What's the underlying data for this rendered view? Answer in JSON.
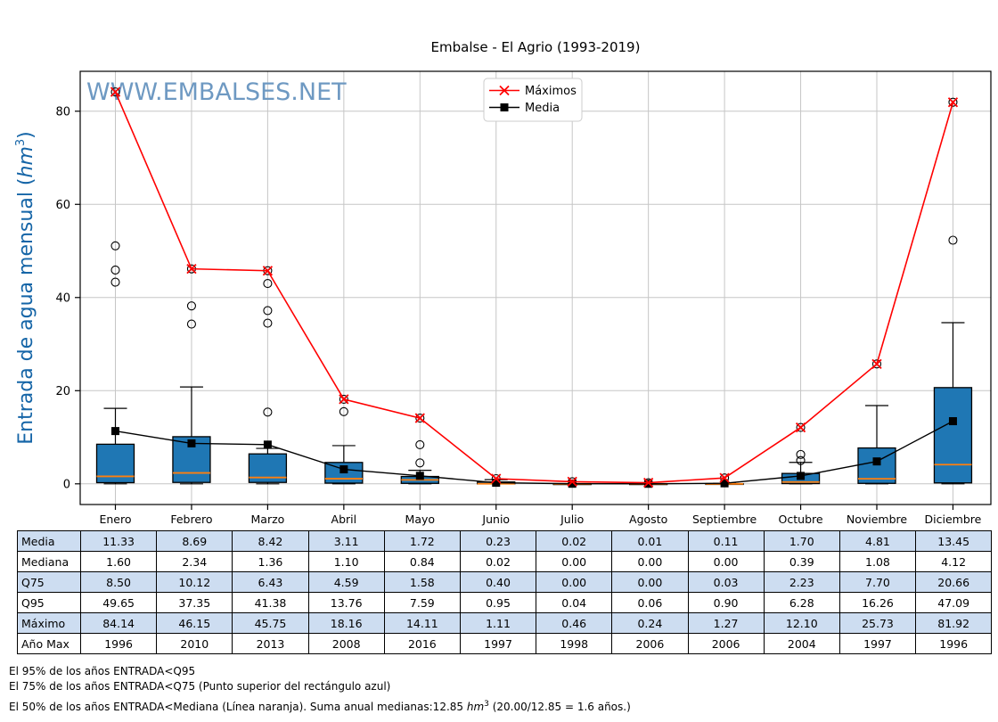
{
  "title": "Embalse - El Agrio (1993-2019)",
  "watermark": "WWW.EMBALSES.NET",
  "ylabel": {
    "pre": "Entrada de agua mensual (",
    "unit": "hm",
    "sup": "3",
    "post": ")"
  },
  "colors": {
    "box_fill": "#1f77b4",
    "box_edge": "#000000",
    "median": "#ff7f0e",
    "max_line": "#ff0000",
    "mean_line": "#000000",
    "grid": "#c6c6c6",
    "watermark": "#6e99c2",
    "ylabel": "#1565a7",
    "table_blue": "#cdddf1"
  },
  "chart_data": {
    "type": "boxplot",
    "title": "Embalse - El Agrio (1993-2019)",
    "ylabel": "Entrada de agua mensual (hm^3)",
    "ylim": [
      -4.4,
      88.6
    ],
    "yticks": [
      0,
      20,
      40,
      60,
      80
    ],
    "grid": true,
    "legend_position": "top-center",
    "categories": [
      "Enero",
      "Febrero",
      "Marzo",
      "Abril",
      "Mayo",
      "Junio",
      "Julio",
      "Agosto",
      "Septiembre",
      "Octubre",
      "Noviembre",
      "Diciembre"
    ],
    "series": [
      {
        "name": "Máximos",
        "marker": "x",
        "color": "#ff0000",
        "values": [
          84.14,
          46.15,
          45.75,
          18.16,
          14.11,
          1.11,
          0.46,
          0.24,
          1.27,
          12.1,
          25.73,
          81.92
        ]
      },
      {
        "name": "Media",
        "marker": "square",
        "color": "#000000",
        "values": [
          11.33,
          8.69,
          8.42,
          3.11,
          1.72,
          0.23,
          0.02,
          0.01,
          0.11,
          1.7,
          4.81,
          13.45
        ]
      }
    ],
    "boxes": [
      {
        "q1": 0.25,
        "median": 1.6,
        "q3": 8.5,
        "whisker_low": 0.0,
        "whisker_high": 16.2,
        "fliers": [
          43.3,
          45.9,
          51.1,
          84.14
        ]
      },
      {
        "q1": 0.3,
        "median": 2.34,
        "q3": 10.12,
        "whisker_low": 0.0,
        "whisker_high": 20.8,
        "fliers": [
          34.3,
          38.2,
          46.15
        ]
      },
      {
        "q1": 0.3,
        "median": 1.36,
        "q3": 6.43,
        "whisker_low": 0.0,
        "whisker_high": 7.6,
        "fliers": [
          15.4,
          34.5,
          37.2,
          43.0,
          45.75
        ]
      },
      {
        "q1": 0.15,
        "median": 1.1,
        "q3": 4.59,
        "whisker_low": 0.0,
        "whisker_high": 8.2,
        "fliers": [
          15.5,
          18.16
        ]
      },
      {
        "q1": 0.1,
        "median": 0.84,
        "q3": 1.58,
        "whisker_low": 0.0,
        "whisker_high": 2.9,
        "fliers": [
          4.5,
          8.4,
          14.11
        ]
      },
      {
        "q1": 0.0,
        "median": 0.02,
        "q3": 0.4,
        "whisker_low": 0.0,
        "whisker_high": 0.9,
        "fliers": [
          1.11
        ]
      },
      {
        "q1": 0.0,
        "median": 0.0,
        "q3": 0.0,
        "whisker_low": 0.0,
        "whisker_high": 0.05,
        "fliers": [
          0.46
        ]
      },
      {
        "q1": 0.0,
        "median": 0.0,
        "q3": 0.0,
        "whisker_low": 0.0,
        "whisker_high": 0.03,
        "fliers": [
          0.24
        ]
      },
      {
        "q1": 0.0,
        "median": 0.0,
        "q3": 0.03,
        "whisker_low": 0.0,
        "whisker_high": 0.1,
        "fliers": [
          1.27
        ]
      },
      {
        "q1": 0.05,
        "median": 0.39,
        "q3": 2.23,
        "whisker_low": 0.0,
        "whisker_high": 4.6,
        "fliers": [
          5.0,
          6.3,
          12.1
        ]
      },
      {
        "q1": 0.1,
        "median": 1.08,
        "q3": 7.7,
        "whisker_low": 0.0,
        "whisker_high": 16.8,
        "fliers": [
          25.73
        ]
      },
      {
        "q1": 0.2,
        "median": 4.12,
        "q3": 20.66,
        "whisker_low": 0.0,
        "whisker_high": 34.6,
        "fliers": [
          52.3,
          81.92
        ]
      }
    ]
  },
  "table": {
    "columns": [
      "Enero",
      "Febrero",
      "Marzo",
      "Abril",
      "Mayo",
      "Junio",
      "Julio",
      "Agosto",
      "Septiembre",
      "Octubre",
      "Noviembre",
      "Diciembre"
    ],
    "row_labels": [
      "Media",
      "Mediana",
      "Q75",
      "Q95",
      "Máximo",
      "Año Max"
    ],
    "rows": [
      [
        "11.33",
        "8.69",
        "8.42",
        "3.11",
        "1.72",
        "0.23",
        "0.02",
        "0.01",
        "0.11",
        "1.70",
        "4.81",
        "13.45"
      ],
      [
        "1.60",
        "2.34",
        "1.36",
        "1.10",
        "0.84",
        "0.02",
        "0.00",
        "0.00",
        "0.00",
        "0.39",
        "1.08",
        "4.12"
      ],
      [
        "8.50",
        "10.12",
        "6.43",
        "4.59",
        "1.58",
        "0.40",
        "0.00",
        "0.00",
        "0.03",
        "2.23",
        "7.70",
        "20.66"
      ],
      [
        "49.65",
        "37.35",
        "41.38",
        "13.76",
        "7.59",
        "0.95",
        "0.04",
        "0.06",
        "0.90",
        "6.28",
        "16.26",
        "47.09"
      ],
      [
        "84.14",
        "46.15",
        "45.75",
        "18.16",
        "14.11",
        "1.11",
        "0.46",
        "0.24",
        "1.27",
        "12.10",
        "25.73",
        "81.92"
      ],
      [
        "1996",
        "2010",
        "2013",
        "2008",
        "2016",
        "1997",
        "1998",
        "2006",
        "2006",
        "2004",
        "1997",
        "1996"
      ]
    ]
  },
  "footnotes": [
    {
      "text": "El 95% de los años ENTRADA<Q95"
    },
    {
      "text": "El 75% de los años ENTRADA<Q75 (Punto superior del rectángulo azul)"
    },
    {
      "pre": "El 50% de los años ENTRADA<Mediana (Línea naranja). Suma anual medianas:12.85 ",
      "unit": "hm",
      "sup": "3",
      "post": " (20.00/12.85 = 1.6 años.)"
    }
  ]
}
